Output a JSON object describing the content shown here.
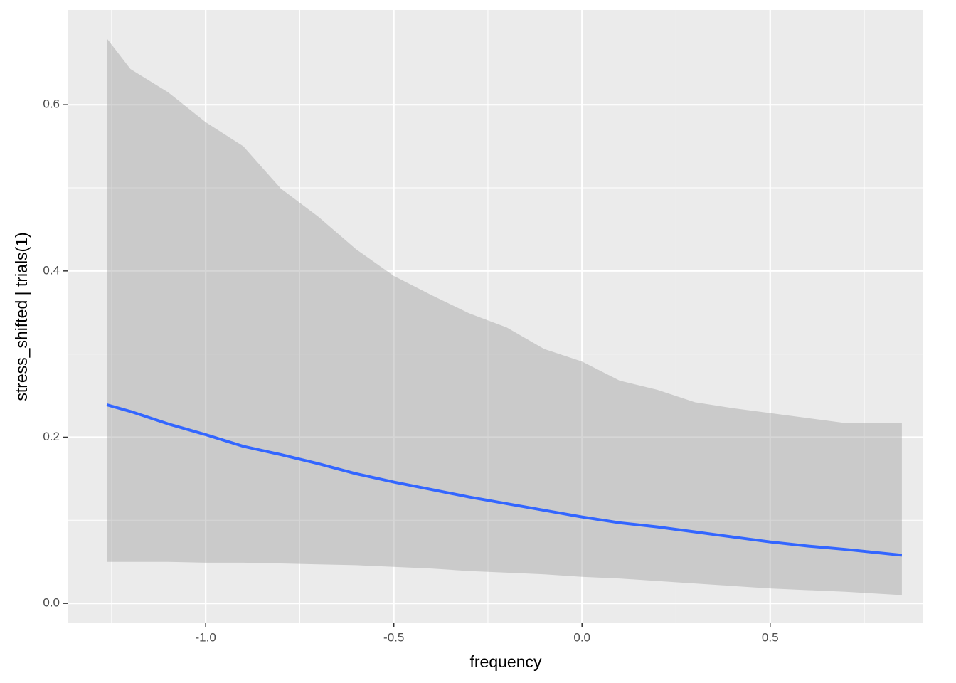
{
  "chart_data": {
    "type": "line",
    "x_label": "frequency",
    "y_label": "stress_shifted | trials(1)",
    "x": [
      -1.263,
      -1.2,
      -1.1,
      -1.0,
      -0.9,
      -0.8,
      -0.7,
      -0.6,
      -0.5,
      -0.4,
      -0.3,
      -0.2,
      -0.1,
      0.0,
      0.1,
      0.2,
      0.3,
      0.4,
      0.5,
      0.6,
      0.7,
      0.85
    ],
    "series": [
      {
        "color": "#3366ff",
        "ribbon_color": "#999999",
        "values": [
          0.239,
          0.231,
          0.216,
          0.203,
          0.189,
          0.179,
          0.168,
          0.156,
          0.146,
          0.137,
          0.128,
          0.12,
          0.112,
          0.104,
          0.097,
          0.092,
          0.086,
          0.08,
          0.074,
          0.069,
          0.065,
          0.058
        ],
        "lower": [
          0.05,
          0.05,
          0.05,
          0.049,
          0.049,
          0.048,
          0.047,
          0.046,
          0.044,
          0.042,
          0.039,
          0.037,
          0.035,
          0.032,
          0.03,
          0.027,
          0.024,
          0.021,
          0.018,
          0.016,
          0.014,
          0.01
        ],
        "upper": [
          0.68,
          0.643,
          0.615,
          0.579,
          0.55,
          0.499,
          0.465,
          0.426,
          0.394,
          0.371,
          0.349,
          0.332,
          0.306,
          0.291,
          0.268,
          0.257,
          0.242,
          0.235,
          0.229,
          0.223,
          0.217,
          0.217
        ]
      }
    ],
    "xlim": [
      -1.367,
      0.905
    ],
    "ylim": [
      -0.023,
      0.714
    ],
    "xticks": [
      {
        "value": -1,
        "label": "-1.0"
      },
      -0.5,
      {
        "value": 0,
        "label": "0.0"
      },
      0.5
    ],
    "yticks": [
      {
        "value": 0,
        "label": "0.0"
      },
      0.2,
      0.4,
      0.6
    ],
    "xminorticks": [
      -1.25,
      -0.75,
      -0.25,
      0.25,
      0.75
    ],
    "yminorticks": [
      0.1,
      0.3,
      0.5
    ],
    "grid": true,
    "panel_color": "#ebebeb"
  }
}
